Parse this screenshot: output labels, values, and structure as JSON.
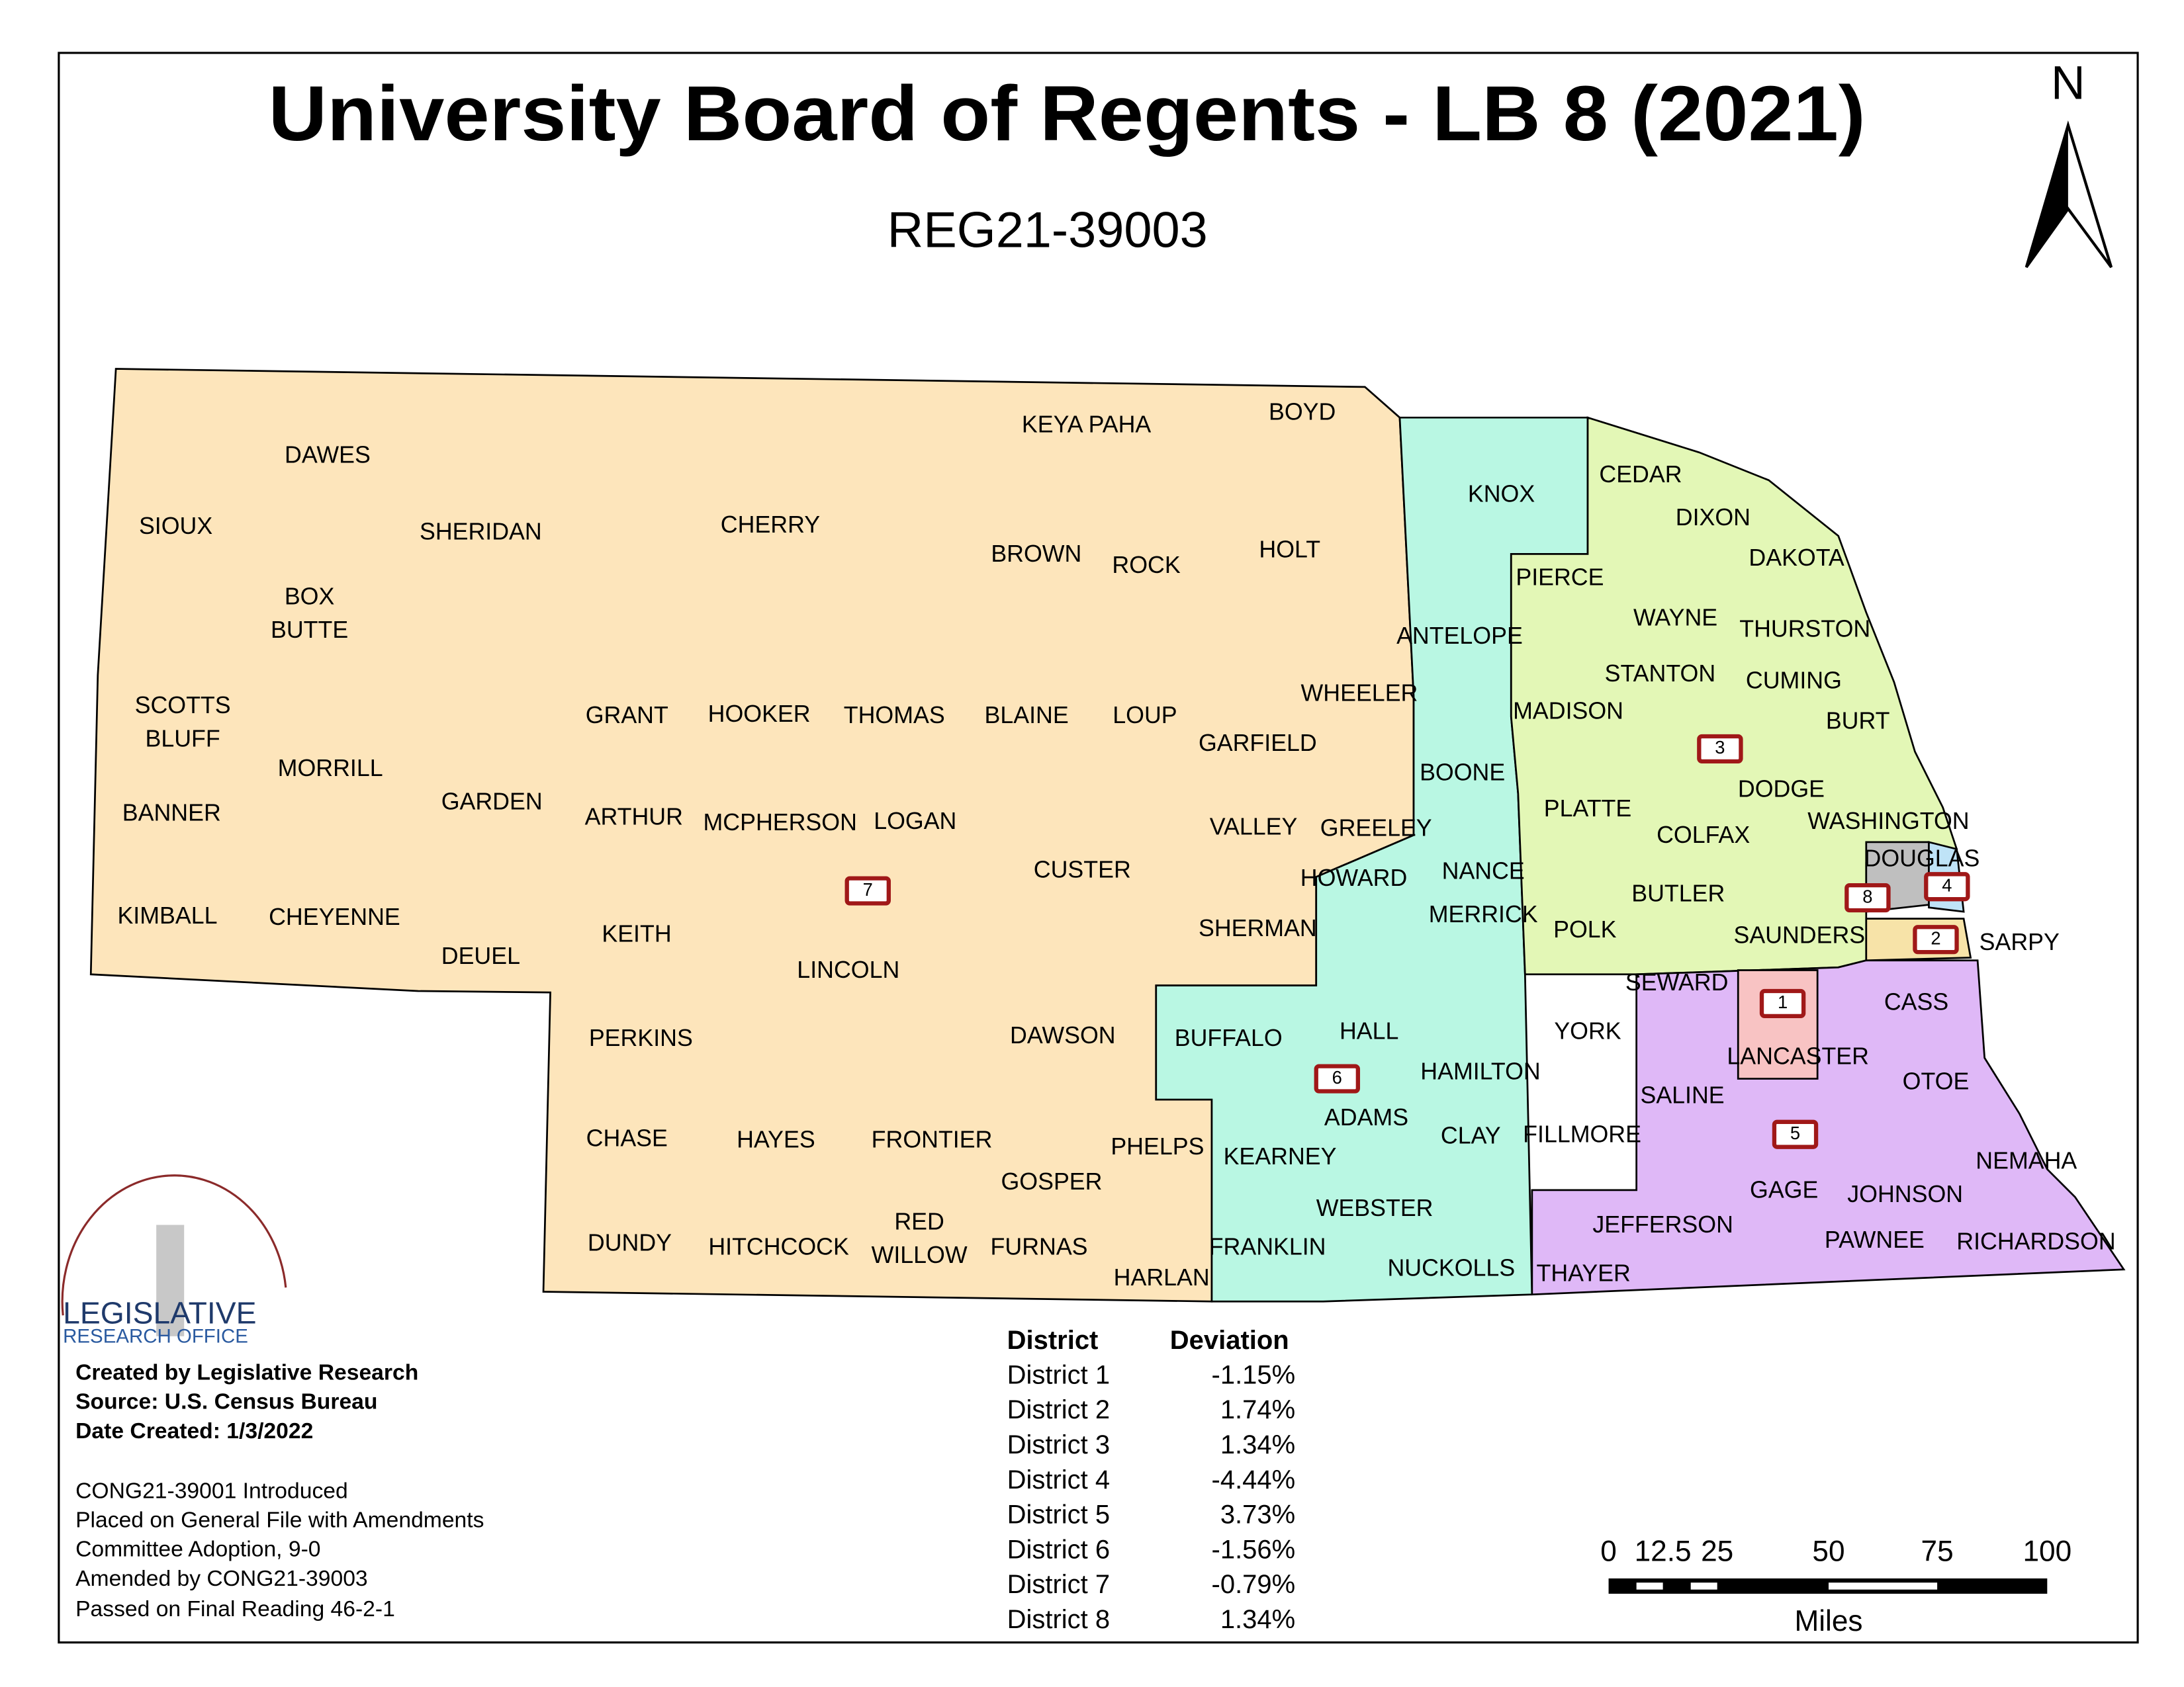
{
  "header": {
    "title": "University Board of Regents - LB 8 (2021)",
    "subtitle": "REG21-39003",
    "north": "N"
  },
  "counties": [
    "SIOUX",
    "DAWES",
    "SHERIDAN",
    "CHERRY",
    "KEYA PAHA",
    "BOYD",
    "BROWN",
    "ROCK",
    "HOLT",
    "KNOX",
    "CEDAR",
    "DIXON",
    "DAKOTA",
    "PIERCE",
    "WAYNE",
    "THURSTON",
    "ANTELOPE",
    [
      "BOX",
      "BUTTE"
    ],
    [
      "SCOTTS",
      "BLUFF"
    ],
    "MORRILL",
    "GARDEN",
    "GRANT",
    "HOOKER",
    "THOMAS",
    "BLAINE",
    "LOUP",
    "GARFIELD",
    "WHEELER",
    "STANTON",
    "CUMING",
    "MADISON",
    "BURT",
    "BOONE",
    "PLATTE",
    "COLFAX",
    "DODGE",
    "WASHINGTON",
    "DOUGLAS",
    "BANNER",
    "ARTHUR",
    "MCPHERSON",
    "LOGAN",
    "CUSTER",
    "VALLEY",
    "GREELEY",
    "HOWARD",
    "NANCE",
    "MERRICK",
    "POLK",
    "BUTLER",
    "SAUNDERS",
    "SARPY",
    "KIMBALL",
    "CHEYENNE",
    "DEUEL",
    "KEITH",
    "LINCOLN",
    "SHERMAN",
    "SEWARD",
    "CASS",
    "PERKINS",
    "DAWSON",
    "BUFFALO",
    "HALL",
    "YORK",
    "HAMILTON",
    "LANCASTER",
    "OTOE",
    "ADAMS",
    "SALINE",
    "CHASE",
    "HAYES",
    "FRONTIER",
    "PHELPS",
    "KEARNEY",
    "CLAY",
    "FILLMORE",
    "GOSPER",
    "GAGE",
    "JOHNSON",
    "NEMAHA",
    "WEBSTER",
    "JEFFERSON",
    "DUNDY",
    "HITCHCOCK",
    [
      "RED",
      "WILLOW"
    ],
    "FURNAS",
    "FRANKLIN",
    "NUCKOLLS",
    "THAYER",
    "PAWNEE",
    "RICHARDSON",
    "HARLAN"
  ],
  "district_markers": [
    "1",
    "2",
    "3",
    "4",
    "5",
    "6",
    "7",
    "8"
  ],
  "table": {
    "headers": [
      "District",
      "Deviation"
    ],
    "rows": [
      [
        "District 1",
        "-1.15%"
      ],
      [
        "District 2",
        "1.74%"
      ],
      [
        "District 3",
        "1.34%"
      ],
      [
        "District 4",
        "-4.44%"
      ],
      [
        "District 5",
        "3.73%"
      ],
      [
        "District 6",
        "-1.56%"
      ],
      [
        "District 7",
        "-0.79%"
      ],
      [
        "District 8",
        "1.34%"
      ]
    ]
  },
  "credits": [
    "Created by Legislative Research",
    "Source:  U.S. Census Bureau",
    "Date Created:  1/3/2022"
  ],
  "notes": [
    "CONG21-39001 Introduced",
    "Placed on General File with Amendments",
    "Committee Adoption, 9-0",
    "Amended by CONG21-39003",
    "Passed on Final Reading 46-2-1"
  ],
  "logo": [
    "LEGISLATIVE",
    "RESEARCH OFFICE"
  ],
  "scale_bar": {
    "labels": [
      "0",
      "12.5",
      "25",
      "50",
      "75",
      "100"
    ],
    "unit": "Miles"
  }
}
